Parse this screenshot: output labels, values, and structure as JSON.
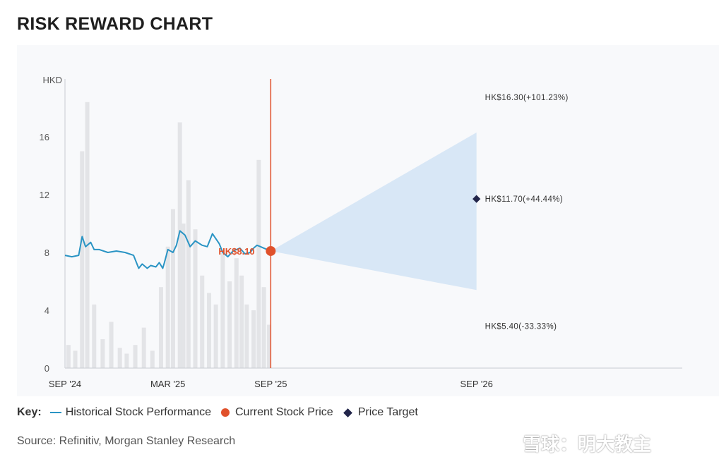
{
  "title": "RISK REWARD CHART",
  "chart_data": {
    "type": "line",
    "title": "RISK REWARD CHART",
    "ylabel": "HKD",
    "ylim": [
      0,
      20
    ],
    "yticks": [
      0,
      4,
      8,
      12,
      16
    ],
    "xticks": [
      "SEP '24",
      "MAR '25",
      "SEP '25",
      "SEP '26"
    ],
    "xlim_months": [
      0,
      36
    ],
    "xtick_months": [
      0,
      6,
      12,
      24
    ],
    "series": [
      {
        "name": "Historical Stock Performance",
        "color": "#2a94c4",
        "x_months": [
          0,
          0.4,
          0.8,
          1.0,
          1.2,
          1.5,
          1.7,
          2.0,
          2.5,
          3.0,
          3.5,
          4.0,
          4.3,
          4.5,
          4.8,
          5.0,
          5.3,
          5.5,
          5.7,
          5.8,
          6.0,
          6.3,
          6.5,
          6.7,
          7.0,
          7.3,
          7.6,
          8.0,
          8.3,
          8.6,
          9.0,
          9.2,
          9.5,
          9.8,
          10.2,
          10.5,
          10.8,
          11.0,
          11.2,
          11.4,
          11.6,
          11.8,
          12.0
        ],
        "values": [
          7.8,
          7.7,
          7.8,
          9.1,
          8.4,
          8.7,
          8.2,
          8.2,
          8.0,
          8.1,
          8.0,
          7.8,
          6.9,
          7.2,
          6.9,
          7.1,
          7.0,
          7.3,
          6.9,
          7.3,
          8.2,
          8.0,
          8.5,
          9.5,
          9.2,
          8.4,
          8.8,
          8.5,
          8.4,
          9.3,
          8.6,
          8.0,
          7.7,
          8.1,
          8.3,
          7.9,
          8.0,
          8.3,
          8.5,
          8.4,
          8.3,
          8.2,
          8.1
        ]
      }
    ],
    "volume_months": [
      0.2,
      0.6,
      1.0,
      1.3,
      1.7,
      2.2,
      2.7,
      3.2,
      3.6,
      4.1,
      4.6,
      5.1,
      5.6,
      6.0,
      6.3,
      6.7,
      6.9,
      7.2,
      7.6,
      8.0,
      8.4,
      8.8,
      9.2,
      9.6,
      10.0,
      10.3,
      10.6,
      11.0,
      11.3,
      11.6,
      11.9
    ],
    "volume_level": [
      0.08,
      0.06,
      0.75,
      0.92,
      0.22,
      0.1,
      0.16,
      0.07,
      0.05,
      0.08,
      0.14,
      0.06,
      0.28,
      0.42,
      0.55,
      0.85,
      0.5,
      0.65,
      0.48,
      0.32,
      0.26,
      0.22,
      0.4,
      0.3,
      0.38,
      0.32,
      0.22,
      0.2,
      0.72,
      0.28,
      0.15
    ],
    "current": {
      "label": "Current Stock Price",
      "value": 8.1,
      "month": 12,
      "text": "HK$8.10",
      "color": "#e0512b"
    },
    "projection": {
      "month": 24,
      "upper": 16.3,
      "lower": 5.4,
      "fill": "#d6e6f6"
    },
    "price_target": {
      "label": "Price Target",
      "value": 11.7,
      "color": "#22254a"
    },
    "annotations": [
      {
        "text": "HK$16.30(+101.23%)",
        "value": 16.3
      },
      {
        "text": "HK$11.70(+44.44%)",
        "value": 11.7
      },
      {
        "text": "HK$5.40(-33.33%)",
        "value": 5.4
      }
    ]
  },
  "key": {
    "label": "Key:",
    "items": [
      "Historical Stock Performance",
      "Current Stock Price",
      "Price Target"
    ]
  },
  "source": "Source: Refinitiv, Morgan Stanley Research",
  "watermark": "雪球：明大教主"
}
